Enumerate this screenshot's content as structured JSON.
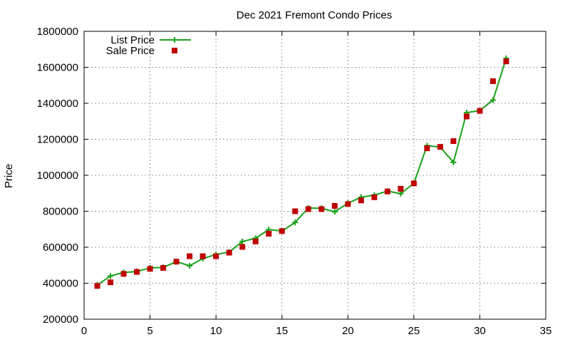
{
  "chart_data": {
    "type": "line",
    "title": "Dec 2021 Fremont Condo Prices",
    "xlabel": "",
    "ylabel": "Price",
    "xlim": [
      0,
      35
    ],
    "ylim": [
      200000,
      1800000
    ],
    "x_ticks": [
      0,
      5,
      10,
      15,
      20,
      25,
      30,
      35
    ],
    "y_ticks": [
      200000,
      400000,
      600000,
      800000,
      1000000,
      1200000,
      1400000,
      1600000,
      1800000
    ],
    "grid": true,
    "legend_position": "top-left",
    "series": [
      {
        "name": "List Price",
        "style": "line-with-plus-markers",
        "color": "#1aa11a",
        "x": [
          1,
          2,
          3,
          4,
          5,
          6,
          7,
          8,
          9,
          10,
          11,
          12,
          13,
          14,
          15,
          16,
          17,
          18,
          19,
          20,
          21,
          22,
          23,
          24,
          25,
          26,
          27,
          28,
          29,
          30,
          31,
          32
        ],
        "values": [
          390000,
          440000,
          460000,
          465000,
          485000,
          488000,
          520000,
          497000,
          537000,
          560000,
          573000,
          632000,
          650000,
          698000,
          690000,
          738000,
          818000,
          817000,
          797000,
          845000,
          878000,
          890000,
          912000,
          898000,
          955000,
          1165000,
          1157000,
          1072000,
          1348000,
          1360000,
          1418000,
          1650000
        ]
      },
      {
        "name": "Sale Price",
        "style": "square-markers",
        "color": "#c00000",
        "x": [
          1,
          2,
          3,
          4,
          5,
          6,
          7,
          8,
          9,
          10,
          11,
          12,
          13,
          14,
          15,
          16,
          17,
          18,
          19,
          20,
          21,
          22,
          23,
          24,
          25,
          26,
          27,
          28,
          29,
          30,
          31,
          32
        ],
        "values": [
          385000,
          405000,
          452000,
          463000,
          480000,
          485000,
          520000,
          550000,
          550000,
          550000,
          570000,
          602000,
          632000,
          675000,
          690000,
          800000,
          812000,
          812000,
          830000,
          840000,
          860000,
          878000,
          910000,
          925000,
          955000,
          1150000,
          1158000,
          1190000,
          1327000,
          1358000,
          1523000,
          1633000
        ]
      }
    ]
  }
}
